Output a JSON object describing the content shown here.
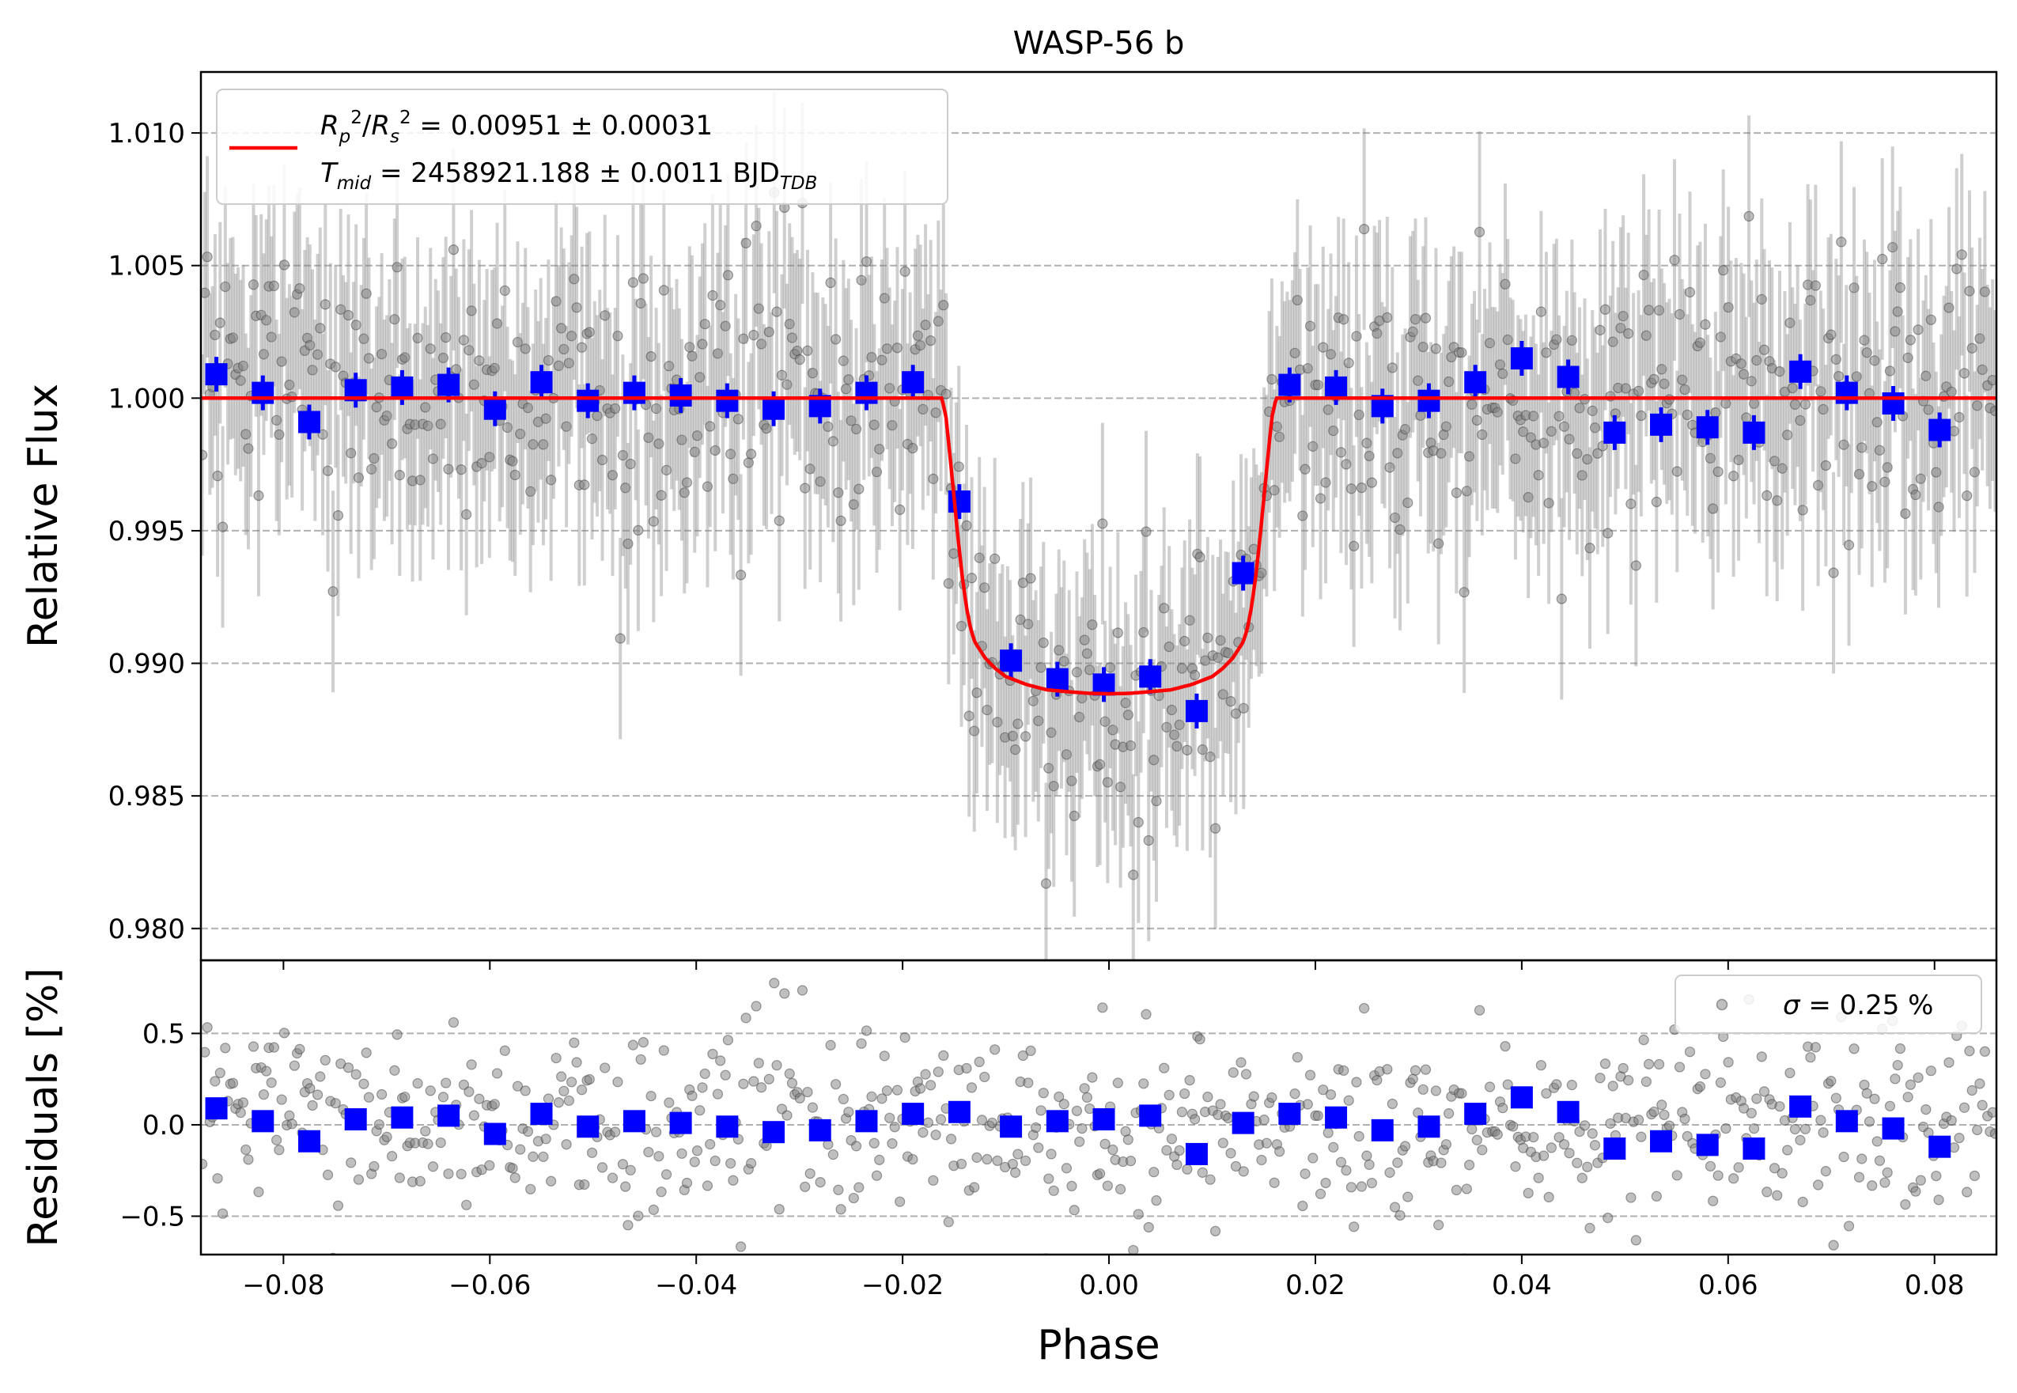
{
  "chart_data": [
    {
      "type": "scatter",
      "panel": "top",
      "title": "WASP-56 b",
      "xlabel": "",
      "ylabel": "Relative Flux",
      "xlim": [
        -0.088,
        0.086
      ],
      "ylim": [
        0.9788,
        1.0123
      ],
      "grid": "horizontal dashed",
      "yticks": [
        0.98,
        0.985,
        0.99,
        0.995,
        1.0,
        1.005,
        1.01
      ],
      "ytick_labels": [
        "0.980",
        "0.985",
        "0.990",
        "0.995",
        "1.000",
        "1.005",
        "1.010"
      ],
      "xticks": [
        -0.08,
        -0.06,
        -0.04,
        -0.02,
        0.0,
        0.02,
        0.04,
        0.06,
        0.08
      ],
      "legend": {
        "placement": "top-left",
        "entries": [
          {
            "label": "Rp²/Rs² = 0.00951 ± 0.00031",
            "color": "#ff0000"
          },
          {
            "label": "Tmid = 2458921.188 ± 0.0011 BJD_TDB",
            "color": "#ff0000"
          }
        ]
      },
      "series": [
        {
          "name": "raw data",
          "style": "gray points with error bars",
          "color": "#808080",
          "error": 0.0038,
          "description": "About 700 unbinned photometric points scattered around the model with ~0.25% scatter (dense cloud)"
        },
        {
          "name": "binned",
          "style": "blue squares",
          "color": "#0000ff",
          "x": [
            -0.0865,
            -0.082,
            -0.0775,
            -0.073,
            -0.0685,
            -0.064,
            -0.0595,
            -0.055,
            -0.0505,
            -0.046,
            -0.0415,
            -0.037,
            -0.0325,
            -0.028,
            -0.0235,
            -0.019,
            -0.0145,
            -0.0095,
            -0.005,
            -0.0005,
            0.004,
            0.0085,
            0.013,
            0.0175,
            0.022,
            0.0265,
            0.031,
            0.0355,
            0.04,
            0.0445,
            0.049,
            0.0535,
            0.058,
            0.0625,
            0.067,
            0.0715,
            0.076,
            0.0805
          ],
          "y": [
            1.0009,
            1.0002,
            0.9991,
            1.0003,
            1.0004,
            1.0005,
            0.9996,
            1.0006,
            0.9999,
            1.0002,
            1.0001,
            0.9999,
            0.9996,
            0.9997,
            1.0002,
            1.0006,
            0.9961,
            0.9901,
            0.9894,
            0.9892,
            0.9895,
            0.9882,
            0.9934,
            1.0005,
            1.0004,
            0.9997,
            0.9999,
            1.0006,
            1.0015,
            1.0008,
            0.9987,
            0.999,
            0.9989,
            0.9987,
            1.001,
            1.0002,
            0.9998,
            0.9988
          ]
        },
        {
          "name": "transit model",
          "style": "red line",
          "color": "#ff0000",
          "x": [
            -0.088,
            -0.0162,
            -0.0158,
            -0.0154,
            -0.015,
            -0.0146,
            -0.0142,
            -0.0138,
            -0.0134,
            -0.013,
            -0.012,
            -0.011,
            -0.01,
            -0.008,
            -0.006,
            -0.004,
            -0.002,
            0.0,
            0.002,
            0.004,
            0.006,
            0.008,
            0.01,
            0.011,
            0.012,
            0.013,
            0.0134,
            0.0138,
            0.0142,
            0.0146,
            0.015,
            0.0154,
            0.0158,
            0.0162,
            0.086
          ],
          "y": [
            1.0,
            1.0,
            0.9993,
            0.9978,
            0.9962,
            0.9946,
            0.9932,
            0.9921,
            0.9913,
            0.9908,
            0.9902,
            0.9898,
            0.9895,
            0.9892,
            0.989,
            0.98893,
            0.98887,
            0.98885,
            0.98887,
            0.98893,
            0.989,
            0.9892,
            0.9895,
            0.9898,
            0.9902,
            0.9908,
            0.9913,
            0.9921,
            0.9932,
            0.9946,
            0.9962,
            0.9978,
            0.9993,
            1.0,
            1.0
          ]
        }
      ]
    },
    {
      "type": "scatter",
      "panel": "bottom",
      "title": "",
      "xlabel": "Phase",
      "ylabel": "Residuals [%]",
      "xlim": [
        -0.088,
        0.086
      ],
      "ylim": [
        -0.71,
        0.9
      ],
      "grid": "horizontal dashed",
      "yticks": [
        -0.5,
        0.0,
        0.5
      ],
      "ytick_labels": [
        "−0.5",
        "0.0",
        "0.5"
      ],
      "xticks": [
        -0.08,
        -0.06,
        -0.04,
        -0.02,
        0.0,
        0.02,
        0.04,
        0.06,
        0.08
      ],
      "xtick_labels": [
        "−0.08",
        "−0.06",
        "−0.04",
        "−0.02",
        "0.00",
        "0.02",
        "0.04",
        "0.06",
        "0.08"
      ],
      "legend": {
        "placement": "top-right",
        "entries": [
          {
            "label": "σ = 0.25 %",
            "color": "#808080"
          }
        ]
      },
      "series": [
        {
          "name": "residuals",
          "style": "gray points",
          "color": "#808080",
          "description": "About 700 residual points with standard deviation ~0.25%"
        },
        {
          "name": "binned residuals",
          "style": "blue squares",
          "color": "#0000ff",
          "x": [
            -0.0865,
            -0.082,
            -0.0775,
            -0.073,
            -0.0685,
            -0.064,
            -0.0595,
            -0.055,
            -0.0505,
            -0.046,
            -0.0415,
            -0.037,
            -0.0325,
            -0.028,
            -0.0235,
            -0.019,
            -0.0145,
            -0.0095,
            -0.005,
            -0.0005,
            0.004,
            0.0085,
            0.013,
            0.0175,
            0.022,
            0.0265,
            0.031,
            0.0355,
            0.04,
            0.0445,
            0.049,
            0.0535,
            0.058,
            0.0625,
            0.067,
            0.0715,
            0.076,
            0.0805
          ],
          "y": [
            0.09,
            0.02,
            -0.09,
            0.03,
            0.04,
            0.05,
            -0.05,
            0.06,
            -0.01,
            0.02,
            0.01,
            -0.01,
            -0.04,
            -0.03,
            0.02,
            0.06,
            0.07,
            -0.01,
            0.02,
            0.03,
            0.05,
            -0.16,
            0.01,
            0.06,
            0.04,
            -0.03,
            -0.01,
            0.06,
            0.15,
            0.07,
            -0.13,
            -0.09,
            -0.11,
            -0.13,
            0.1,
            0.02,
            -0.02,
            -0.12
          ]
        }
      ]
    }
  ]
}
